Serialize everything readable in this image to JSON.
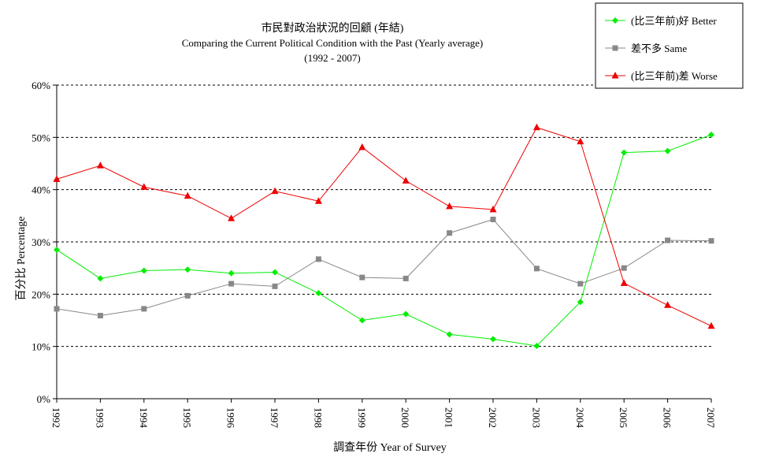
{
  "chart_data": {
    "type": "line",
    "title": "市民對政治狀況的回顧 (年結)",
    "subtitle": "Comparing the Current Political Condition with the Past  (Yearly average)",
    "subtitle2": "(1992 - 2007)",
    "xlabel": "調查年份 Year of Survey",
    "ylabel": "百分比 Percentage",
    "ylim": [
      0,
      60
    ],
    "y_ticks": [
      "0%",
      "10%",
      "20%",
      "30%",
      "40%",
      "50%",
      "60%"
    ],
    "grid": true,
    "legend_position": "top-right",
    "categories": [
      "1992",
      "1993",
      "1994",
      "1995",
      "1996",
      "1997",
      "1998",
      "1999",
      "2000",
      "2001",
      "2002",
      "2003",
      "2004",
      "2005",
      "2006",
      "2007"
    ],
    "series": [
      {
        "name": "(比三年前)好 Better",
        "color": "#00ee00",
        "marker": "diamond",
        "values": [
          28.5,
          23.0,
          24.5,
          24.7,
          24.0,
          24.2,
          20.2,
          15.0,
          16.2,
          12.3,
          11.4,
          10.1,
          18.5,
          47.1,
          47.4,
          50.5
        ]
      },
      {
        "name": "差不多 Same",
        "color": "#888888",
        "marker": "square",
        "values": [
          17.2,
          15.9,
          17.2,
          19.7,
          22.0,
          21.5,
          26.7,
          23.2,
          23.0,
          31.7,
          34.3,
          24.9,
          22.0,
          25.0,
          30.3,
          30.2
        ]
      },
      {
        "name": "(比三年前)差 Worse",
        "color": "#ee0000",
        "marker": "triangle",
        "values": [
          42.0,
          44.6,
          40.5,
          38.8,
          34.5,
          39.7,
          37.8,
          48.1,
          41.7,
          36.8,
          36.2,
          51.9,
          49.2,
          22.1,
          17.9,
          13.9
        ]
      }
    ]
  }
}
